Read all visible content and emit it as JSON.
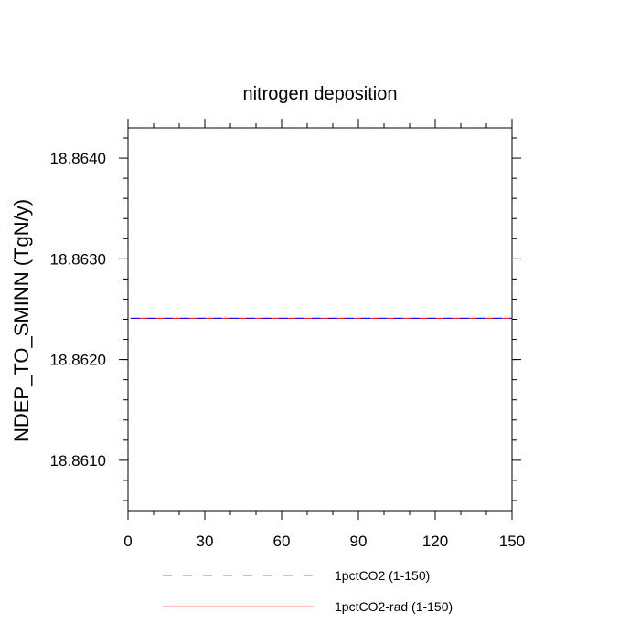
{
  "chart_data": {
    "type": "line",
    "title": "nitrogen deposition",
    "xlabel": "",
    "ylabel": "NDEP_TO_SMINN  (TgN/y)",
    "xlim": [
      0,
      150
    ],
    "ylim": [
      18.8605,
      18.8643
    ],
    "x_ticks": [
      "0",
      "30",
      "60",
      "90",
      "120",
      "150"
    ],
    "x_tick_values": [
      0,
      30,
      60,
      90,
      120,
      150
    ],
    "y_ticks": [
      "18.8610",
      "18.8620",
      "18.8630",
      "18.8640"
    ],
    "y_tick_values": [
      18.861,
      18.862,
      18.863,
      18.864
    ],
    "grid": false,
    "legend_position": "bottom",
    "series": [
      {
        "name": "1pctCO2 (1-150)",
        "color": "#0000ff",
        "style": "dashed",
        "x": [
          1,
          150
        ],
        "y": [
          18.86241,
          18.86241
        ]
      },
      {
        "name": "1pctCO2-rad (1-150)",
        "color": "#ff0000",
        "style": "solid",
        "x": [
          1,
          150
        ],
        "y": [
          18.86241,
          18.86241
        ]
      }
    ]
  }
}
